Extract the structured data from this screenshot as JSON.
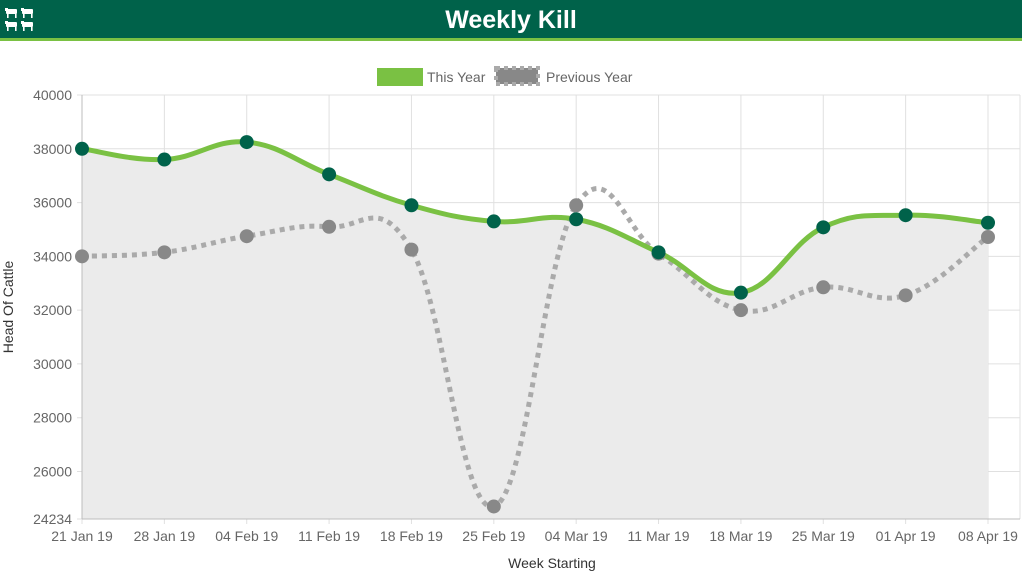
{
  "header": {
    "title": "Weekly Kill",
    "icon": "cattle-icon",
    "background_color": "#00624a",
    "accent_color": "#7ac143"
  },
  "chart_data": {
    "type": "line",
    "xlabel": "Week Starting",
    "ylabel": "Head Of Cattle",
    "categories": [
      "21 Jan 19",
      "28 Jan 19",
      "04 Feb 19",
      "11 Feb 19",
      "18 Feb 19",
      "25 Feb 19",
      "04 Mar 19",
      "11 Mar 19",
      "18 Mar 19",
      "25 Mar 19",
      "01 Apr 19",
      "08 Apr 19"
    ],
    "ylim": [
      24234,
      40000
    ],
    "yticks": [
      24234,
      26000,
      28000,
      30000,
      32000,
      34000,
      36000,
      38000,
      40000
    ],
    "grid": true,
    "legend_position": "top-center",
    "series": [
      {
        "name": "This Year",
        "color": "#7ac143",
        "point_color": "#00624a",
        "style": "solid",
        "fill": "#ebebeb",
        "values": [
          38000,
          37600,
          38250,
          37050,
          35900,
          35300,
          35380,
          34150,
          32650,
          35080,
          35530,
          35250
        ]
      },
      {
        "name": "Previous Year",
        "color": "#aaaaaa",
        "point_color": "#888888",
        "style": "dotted",
        "values": [
          34000,
          34150,
          34750,
          35100,
          34250,
          24700,
          35900,
          34100,
          32000,
          32850,
          32550,
          34720
        ]
      }
    ]
  }
}
